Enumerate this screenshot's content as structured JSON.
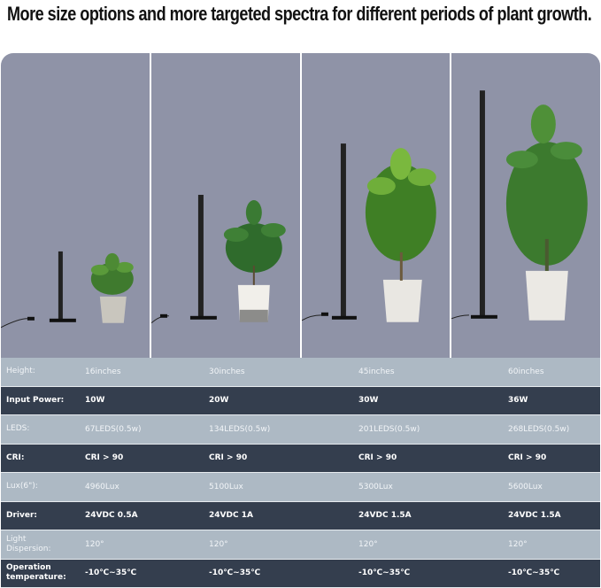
{
  "title": "More size options and more targeted spectra for different periods of plant growth.",
  "colors": {
    "panel_bg": "#8f93a7",
    "row_light": "#adb9c4",
    "row_dark": "#343e4e"
  },
  "rows": [
    {
      "label": "Height:",
      "values": [
        "16inches",
        "30inches",
        "45inches",
        "60inches"
      ]
    },
    {
      "label": "Input Power:",
      "values": [
        "10W",
        "20W",
        "30W",
        "36W"
      ]
    },
    {
      "label": "LEDS:",
      "values": [
        "67LEDS(0.5w)",
        "134LEDS(0.5w)",
        "201LEDS(0.5w)",
        "268LEDS(0.5w)"
      ]
    },
    {
      "label": "CRI:",
      "values": [
        "CRI > 90",
        "CRI > 90",
        "CRI > 90",
        "CRI > 90"
      ]
    },
    {
      "label": "Lux(6\"):",
      "values": [
        "4960Lux",
        "5100Lux",
        "5300Lux",
        "5600Lux"
      ]
    },
    {
      "label": "Driver:",
      "values": [
        "24VDC 0.5A",
        "24VDC 1A",
        "24VDC 1.5A",
        "24VDC 1.5A"
      ]
    },
    {
      "label": "Light Dispersion:",
      "values": [
        "120°",
        "120°",
        "120°",
        "120°"
      ]
    },
    {
      "label": "Operation temperature:",
      "values": [
        "-10℃~35℃",
        "-10℃~35℃",
        "-10℃~35℃",
        "-10℃~35℃"
      ]
    }
  ]
}
